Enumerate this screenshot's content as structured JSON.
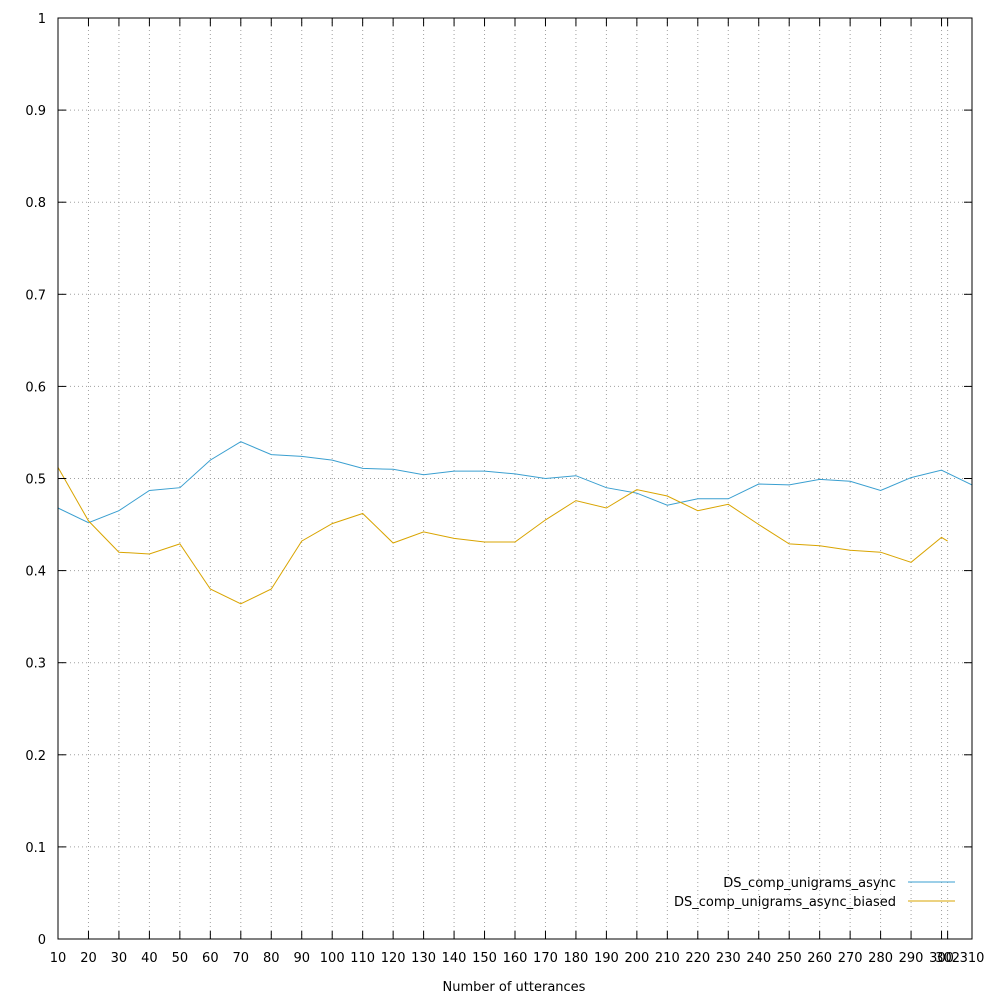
{
  "chart_data": {
    "type": "line",
    "title": "",
    "xlabel": "Number of utterances",
    "ylabel": "",
    "xlim": [
      10,
      310
    ],
    "ylim": [
      0,
      1
    ],
    "grid": true,
    "legend_position": "bottom-right",
    "x_ticks": [
      10,
      20,
      30,
      40,
      50,
      60,
      70,
      80,
      90,
      100,
      110,
      120,
      130,
      140,
      150,
      160,
      170,
      180,
      190,
      200,
      210,
      220,
      230,
      240,
      250,
      260,
      270,
      280,
      290,
      300,
      302,
      310
    ],
    "y_ticks": [
      "0",
      "0.1",
      "0.2",
      "0.3",
      "0.4",
      "0.5",
      "0.6",
      "0.7",
      "0.8",
      "0.9",
      "1"
    ],
    "y_tick_values": [
      0,
      0.1,
      0.2,
      0.3,
      0.4,
      0.5,
      0.6,
      0.7,
      0.8,
      0.9,
      1
    ],
    "series": [
      {
        "name": "DS_comp_unigrams_async",
        "color": "#3a9fd0",
        "x": [
          10,
          20,
          30,
          40,
          50,
          60,
          70,
          80,
          90,
          100,
          110,
          120,
          130,
          140,
          150,
          160,
          170,
          180,
          190,
          200,
          210,
          220,
          230,
          240,
          250,
          260,
          270,
          280,
          290,
          300,
          310
        ],
        "y": [
          0.468,
          0.452,
          0.465,
          0.487,
          0.49,
          0.52,
          0.54,
          0.526,
          0.524,
          0.52,
          0.511,
          0.51,
          0.504,
          0.508,
          0.508,
          0.505,
          0.5,
          0.503,
          0.49,
          0.484,
          0.471,
          0.478,
          0.478,
          0.494,
          0.493,
          0.499,
          0.497,
          0.487,
          0.501,
          0.509,
          0.493
        ]
      },
      {
        "name": "DS_comp_unigrams_async_biased",
        "color": "#d9a400",
        "x": [
          10,
          20,
          30,
          40,
          50,
          60,
          70,
          80,
          90,
          100,
          110,
          120,
          130,
          140,
          150,
          160,
          170,
          180,
          190,
          200,
          210,
          220,
          230,
          240,
          250,
          260,
          270,
          280,
          290,
          300,
          302
        ],
        "y": [
          0.512,
          0.454,
          0.42,
          0.418,
          0.429,
          0.38,
          0.364,
          0.38,
          0.432,
          0.451,
          0.462,
          0.43,
          0.442,
          0.435,
          0.431,
          0.431,
          0.455,
          0.476,
          0.468,
          0.488,
          0.481,
          0.465,
          0.472,
          0.45,
          0.429,
          0.427,
          0.422,
          0.42,
          0.409,
          0.436,
          0.432
        ]
      }
    ]
  }
}
